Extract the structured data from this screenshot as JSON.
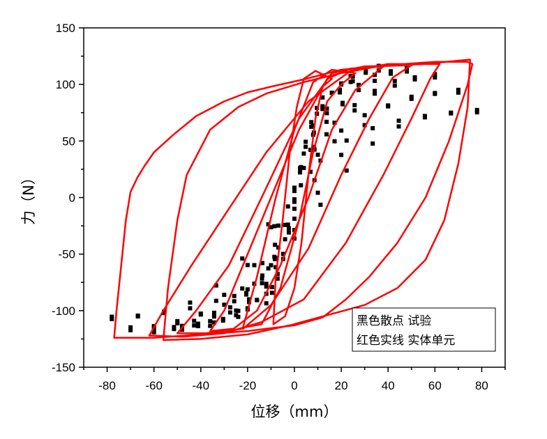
{
  "chart_data": {
    "type": "scatter",
    "xlabel": "位移（mm）",
    "ylabel": "力（N）",
    "xlim": [
      -90,
      90
    ],
    "ylim": [
      -150,
      150
    ],
    "x_ticks": [
      -80,
      -60,
      -40,
      -20,
      0,
      20,
      40,
      60,
      80
    ],
    "y_ticks": [
      -150,
      -100,
      -50,
      0,
      50,
      100,
      150
    ],
    "grid": false,
    "legend_position": "bottom-right",
    "legend_lines": [
      "黑色散点  试验",
      "红色实线  实体单元"
    ],
    "series": [
      {
        "name": "试验",
        "style": "markers",
        "color": "#000000",
        "loops": [
          {
            "amp": 12,
            "fmax": 95,
            "fmin": -100,
            "b": 22,
            "n": 10
          },
          {
            "amp": 24,
            "fmax": 110,
            "fmin": -108,
            "b": 26,
            "n": 12
          },
          {
            "amp": 36,
            "fmax": 118,
            "fmin": -115,
            "b": 30,
            "n": 13
          },
          {
            "amp": 48,
            "fmax": 116,
            "fmin": -118,
            "b": 30,
            "n": 14
          },
          {
            "amp": 60,
            "fmax": 110,
            "fmin": -120,
            "b": 26,
            "n": 14
          },
          {
            "amp": 70,
            "fmax": 96,
            "fmin": -118,
            "b": 20,
            "n": 14
          },
          {
            "amp": 78,
            "fmax": 78,
            "fmin": -108,
            "b": 12,
            "n": 14
          }
        ]
      },
      {
        "name": "实体单元",
        "style": "line",
        "color": "#ff0000",
        "loops": [
          [
            [
              -9,
              -112
            ],
            [
              -4,
              -105
            ],
            [
              0,
              -80
            ],
            [
              3,
              -40
            ],
            [
              6,
              20
            ],
            [
              9,
              70
            ],
            [
              12,
              98
            ],
            [
              16,
              105
            ],
            [
              9,
              112
            ],
            [
              4,
              105
            ],
            [
              1,
              80
            ],
            [
              -2,
              40
            ],
            [
              -5,
              -20
            ],
            [
              -8,
              -70
            ],
            [
              -9,
              -112
            ]
          ],
          [
            [
              -22,
              -115
            ],
            [
              -14,
              -112
            ],
            [
              -6,
              -80
            ],
            [
              2,
              -20
            ],
            [
              8,
              40
            ],
            [
              14,
              85
            ],
            [
              20,
              100
            ],
            [
              26,
              110
            ],
            [
              16,
              113
            ],
            [
              8,
              102
            ],
            [
              0,
              60
            ],
            [
              -8,
              0
            ],
            [
              -16,
              -70
            ],
            [
              -22,
              -115
            ]
          ],
          [
            [
              -36,
              -118
            ],
            [
              -26,
              -116
            ],
            [
              -16,
              -100
            ],
            [
              -6,
              -60
            ],
            [
              6,
              0
            ],
            [
              16,
              60
            ],
            [
              26,
              95
            ],
            [
              38,
              116
            ],
            [
              24,
              114
            ],
            [
              14,
              105
            ],
            [
              2,
              60
            ],
            [
              -10,
              0
            ],
            [
              -22,
              -60
            ],
            [
              -30,
              -100
            ],
            [
              -36,
              -118
            ]
          ],
          [
            [
              -50,
              -120
            ],
            [
              -38,
              -120
            ],
            [
              -22,
              -116
            ],
            [
              -10,
              -95
            ],
            [
              6,
              -45
            ],
            [
              20,
              20
            ],
            [
              32,
              70
            ],
            [
              42,
              106
            ],
            [
              50,
              117
            ],
            [
              30,
              116
            ],
            [
              16,
              110
            ],
            [
              2,
              70
            ],
            [
              -14,
              0
            ],
            [
              -28,
              -60
            ],
            [
              -42,
              -100
            ],
            [
              -50,
              -120
            ]
          ],
          [
            [
              -62,
              -122
            ],
            [
              -48,
              -123
            ],
            [
              -30,
              -120
            ],
            [
              -14,
              -110
            ],
            [
              4,
              -90
            ],
            [
              22,
              -40
            ],
            [
              38,
              20
            ],
            [
              50,
              70
            ],
            [
              58,
              105
            ],
            [
              62,
              118
            ],
            [
              40,
              118
            ],
            [
              24,
              112
            ],
            [
              6,
              85
            ],
            [
              -12,
              40
            ],
            [
              -28,
              -10
            ],
            [
              -44,
              -60
            ],
            [
              -56,
              -100
            ],
            [
              -62,
              -122
            ]
          ],
          [
            [
              -77,
              -124
            ],
            [
              -60,
              -124
            ],
            [
              -40,
              -121
            ],
            [
              -20,
              -118
            ],
            [
              0,
              -113
            ],
            [
              12,
              -106
            ],
            [
              22,
              -90
            ],
            [
              32,
              -70
            ],
            [
              44,
              -40
            ],
            [
              56,
              0
            ],
            [
              66,
              50
            ],
            [
              74,
              100
            ],
            [
              76,
              118
            ],
            [
              74,
              120
            ],
            [
              60,
              120
            ],
            [
              40,
              117
            ],
            [
              20,
              113
            ],
            [
              5,
              105
            ],
            [
              -10,
              98
            ],
            [
              -20,
              93
            ],
            [
              -30,
              85
            ],
            [
              -42,
              72
            ],
            [
              -52,
              55
            ],
            [
              -60,
              40
            ],
            [
              -64,
              28
            ],
            [
              -67,
              18
            ],
            [
              -70,
              5
            ],
            [
              -72,
              -20
            ],
            [
              -74,
              -60
            ],
            [
              -76,
              -100
            ],
            [
              -77,
              -124
            ]
          ],
          [
            [
              -56,
              -126
            ],
            [
              -40,
              -125
            ],
            [
              -20,
              -121
            ],
            [
              -2,
              -113
            ],
            [
              14,
              -104
            ],
            [
              30,
              -95
            ],
            [
              44,
              -80
            ],
            [
              56,
              -55
            ],
            [
              64,
              -20
            ],
            [
              70,
              30
            ],
            [
              74,
              80
            ],
            [
              75,
              122
            ],
            [
              55,
              118
            ],
            [
              36,
              116
            ],
            [
              20,
              110
            ],
            [
              4,
              102
            ],
            [
              -12,
              92
            ],
            [
              -24,
              80
            ],
            [
              -36,
              60
            ],
            [
              -46,
              20
            ],
            [
              -50,
              -20
            ],
            [
              -54,
              -80
            ],
            [
              -56,
              -126
            ]
          ]
        ]
      }
    ]
  }
}
